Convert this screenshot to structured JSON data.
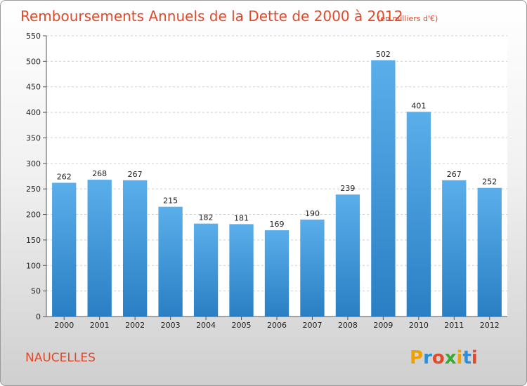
{
  "chart_data": {
    "type": "bar",
    "title": "Remboursements Annuels de la Dette de 2000 à 2012",
    "subtitle": "(en milliers d'€)",
    "categories": [
      "2000",
      "2001",
      "2002",
      "2003",
      "2004",
      "2005",
      "2006",
      "2007",
      "2008",
      "2009",
      "2010",
      "2011",
      "2012"
    ],
    "values": [
      262,
      268,
      267,
      215,
      182,
      181,
      169,
      190,
      239,
      502,
      401,
      267,
      252
    ],
    "ylim": [
      0,
      550
    ],
    "yticks": [
      0,
      50,
      100,
      150,
      200,
      250,
      300,
      350,
      400,
      450,
      500,
      550
    ],
    "grid": true,
    "bar_color_top": "#5aaeea",
    "bar_color_bottom": "#2a7fc4"
  },
  "footer": {
    "commune": "NAUCELLES",
    "logo_letters": [
      "P",
      "r",
      "o",
      "x",
      "i",
      "t",
      "i"
    ],
    "logo_colors": [
      "#f0a000",
      "#2a8fd8",
      "#e0492a",
      "#3aaa35",
      "#f0a000",
      "#2a8fd8",
      "#e0492a"
    ]
  }
}
